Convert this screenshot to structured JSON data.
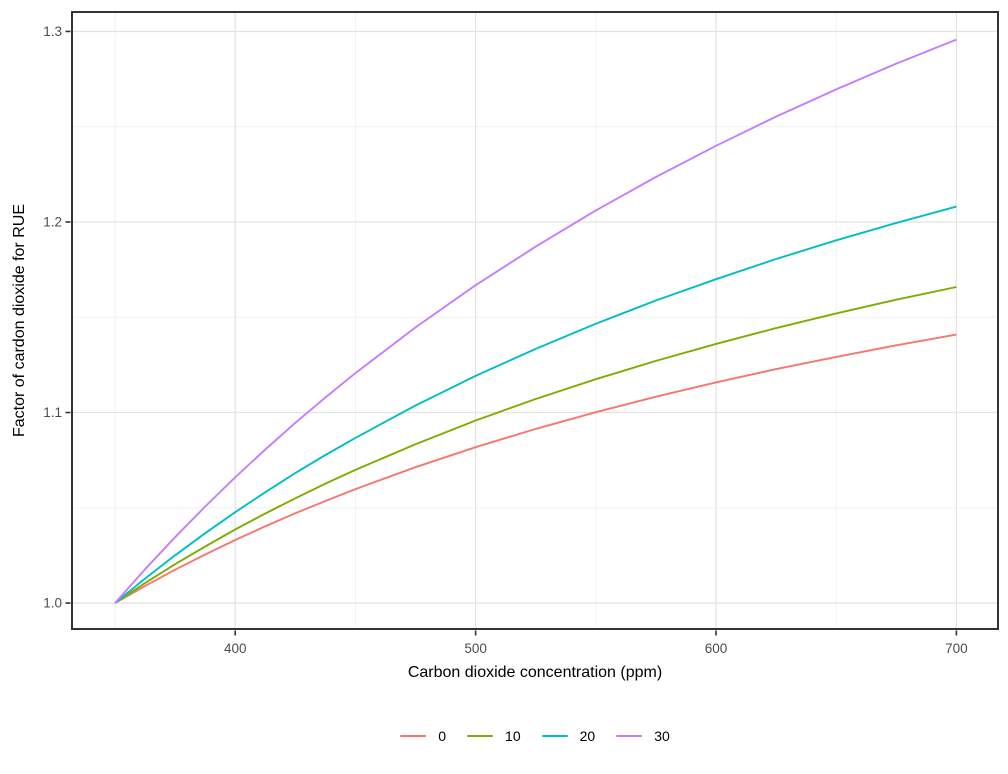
{
  "chart_data": {
    "type": "line",
    "title": "",
    "xlabel": "Carbon dioxide concentration (ppm)",
    "ylabel": "Factor of cardon dioxide for RUE",
    "x": [
      350,
      362.5,
      375,
      387.5,
      400,
      412.5,
      425,
      437.5,
      450,
      475,
      500,
      525,
      550,
      575,
      600,
      625,
      650,
      675,
      700
    ],
    "series": [
      {
        "name": "0",
        "color": "#F8766D",
        "values": [
          1.0,
          1.009,
          1.0175,
          1.0255,
          1.0331,
          1.0403,
          1.0471,
          1.0536,
          1.0598,
          1.0713,
          1.0818,
          1.0914,
          1.1002,
          1.1083,
          1.1158,
          1.1228,
          1.1292,
          1.1353,
          1.1409
        ]
      },
      {
        "name": "10",
        "color": "#7CAE00",
        "values": [
          1.0,
          1.0105,
          1.0204,
          1.0297,
          1.0386,
          1.047,
          1.055,
          1.0627,
          1.0699,
          1.0834,
          1.0958,
          1.1071,
          1.1175,
          1.1271,
          1.136,
          1.1443,
          1.152,
          1.1592,
          1.1659
        ]
      },
      {
        "name": "20",
        "color": "#00BFC4",
        "values": [
          1.0,
          1.0129,
          1.0251,
          1.0367,
          1.0477,
          1.0582,
          1.0682,
          1.0777,
          1.0867,
          1.1037,
          1.1192,
          1.1334,
          1.1466,
          1.1588,
          1.17,
          1.1806,
          1.1904,
          1.1995,
          1.2081
        ]
      },
      {
        "name": "30",
        "color": "#C77CFF",
        "values": [
          1.0,
          1.0178,
          1.0346,
          1.0507,
          1.066,
          1.0806,
          1.0946,
          1.1079,
          1.1207,
          1.1447,
          1.1668,
          1.1871,
          1.2061,
          1.2236,
          1.24,
          1.2553,
          1.2696,
          1.2831,
          1.2957
        ]
      }
    ],
    "x_ticks": {
      "values": [
        400,
        500,
        600,
        700
      ],
      "labels": [
        "400",
        "500",
        "600",
        "700"
      ]
    },
    "y_ticks": {
      "values": [
        1.0,
        1.1,
        1.2,
        1.3
      ],
      "labels": [
        "1.0",
        "1.1",
        "1.2",
        "1.3"
      ]
    },
    "x_minor": [
      350,
      450,
      550,
      650
    ],
    "y_minor": [
      1.05,
      1.15,
      1.25
    ],
    "xlim": [
      332.1,
      717.3
    ],
    "ylim": [
      0.9864,
      1.3102
    ],
    "grid": true,
    "legend_position": "bottom",
    "colors": {
      "background": "#FFFFFF",
      "grid_major": "#E4E4E4",
      "grid_minor": "#F0F0F0",
      "panel_border": "#333333",
      "tick": "#333333",
      "tick_label": "#4D4D4D",
      "axis_title": "#000000"
    }
  }
}
